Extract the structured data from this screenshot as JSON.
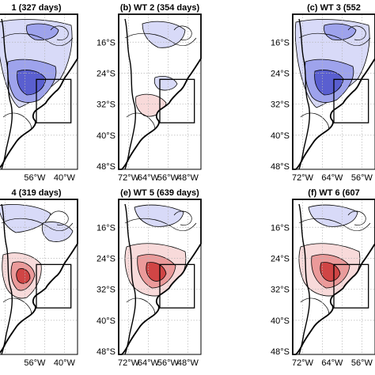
{
  "figure": {
    "panels": [
      {
        "id": "a",
        "title": "1  (327 days)",
        "anomaly": "negative",
        "x_ticks": [
          "",
          "56°W",
          "40°W"
        ],
        "y_ticks": []
      },
      {
        "id": "b",
        "title": "(b) WT 2  (354 days)",
        "anomaly": "weak",
        "x_ticks": [
          "72°W",
          "64°W",
          "56°W",
          "48°W"
        ],
        "y_ticks": [
          "16°S",
          "24°S",
          "32°S",
          "40°S",
          "48°S"
        ]
      },
      {
        "id": "c",
        "title": "(c) WT 3  (552",
        "anomaly": "negative",
        "x_ticks": [
          "72°W",
          "64°W",
          "56°W"
        ],
        "y_ticks": [
          "16°S",
          "24°S",
          "32°S",
          "40°S",
          "48°S"
        ]
      },
      {
        "id": "d",
        "title": "4  (319 days)",
        "anomaly": "mixed",
        "x_ticks": [
          "",
          "56°W",
          "40°W"
        ],
        "y_ticks": []
      },
      {
        "id": "e",
        "title": "(e) WT 5  (639 days)",
        "anomaly": "positive",
        "x_ticks": [
          "72°W",
          "64°W",
          "56°W",
          "48°W"
        ],
        "y_ticks": [
          "16°S",
          "24°S",
          "32°S",
          "40°S",
          "48°S"
        ]
      },
      {
        "id": "f",
        "title": "(f) WT 6  (607",
        "anomaly": "positive",
        "x_ticks": [
          "72°W",
          "64°W",
          "56°W"
        ],
        "y_ticks": [
          "16°S",
          "24°S",
          "32°S",
          "40°S",
          "48°S"
        ]
      }
    ],
    "colors": {
      "negative_dark": "#5a5fd0",
      "negative_mid": "#9ea3ec",
      "negative_light": "#d8daf8",
      "positive_dark": "#d04545",
      "positive_mid": "#eb9a9a",
      "positive_light": "#f8dada",
      "grid": "#b5b5b5",
      "frame": "#000000"
    }
  }
}
